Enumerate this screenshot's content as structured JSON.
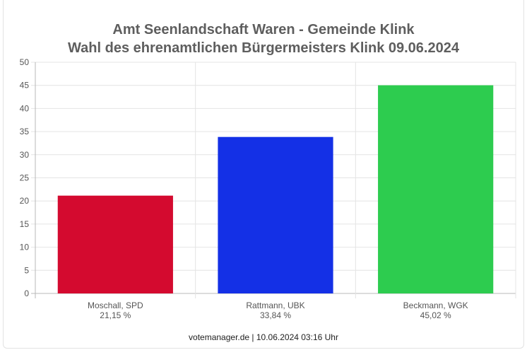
{
  "chart_data": {
    "type": "bar",
    "title": "Amt Seenlandschaft Waren - Gemeinde Klink",
    "subtitle": "Wahl des ehrenamtlichen Bürgermeisters Klink 09.06.2024",
    "categories": [
      "Moschall, SPD",
      "Rattmann, UBK",
      "Beckmann, WGK"
    ],
    "value_labels": [
      "21,15 %",
      "33,84 %",
      "45,02 %"
    ],
    "values": [
      21.15,
      33.84,
      45.02
    ],
    "colors": [
      "#d40a2f",
      "#1430e6",
      "#2dcc4f"
    ],
    "ylim": [
      0,
      50
    ],
    "yticks": [
      0,
      5,
      10,
      15,
      20,
      25,
      30,
      35,
      40,
      45,
      50
    ],
    "grid": true,
    "xlabel": "",
    "ylabel": ""
  },
  "footer": "votemanager.de | 10.06.2024 03:16 Uhr"
}
